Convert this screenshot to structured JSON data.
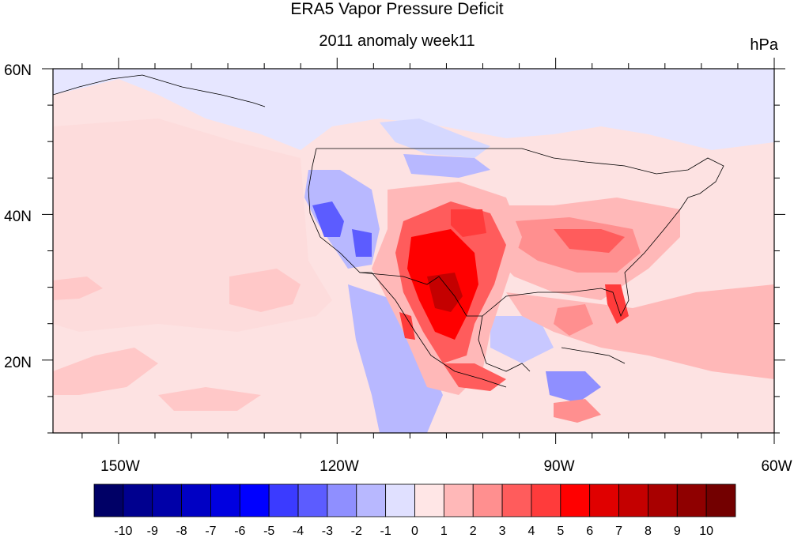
{
  "title": "ERA5 Vapor Pressure Deficit",
  "subtitle": "2011 anomaly week11",
  "units": "hPa",
  "map": {
    "lon_ticks": [
      {
        "lon": -150,
        "label": "150W"
      },
      {
        "lon": -120,
        "label": "120W"
      },
      {
        "lon": -90,
        "label": "90W"
      },
      {
        "lon": -60,
        "label": "60W"
      }
    ],
    "lat_ticks": [
      {
        "lat": 60,
        "label": "60N"
      },
      {
        "lat": 40,
        "label": "40N"
      },
      {
        "lat": 20,
        "label": "20N"
      }
    ],
    "lon_range": [
      -159,
      -60
    ],
    "lat_range": [
      10,
      60
    ],
    "background_color": "#fde2e2"
  },
  "colorbar": {
    "labels": [
      "-10",
      "-9",
      "-8",
      "-7",
      "-6",
      "-5",
      "-4",
      "-3",
      "-2",
      "-1",
      "0",
      "1",
      "2",
      "3",
      "4",
      "5",
      "6",
      "7",
      "8",
      "9",
      "10"
    ],
    "colors": [
      "#000066",
      "#00008f",
      "#0000a8",
      "#0000c4",
      "#0000e0",
      "#0000ff",
      "#3b3bff",
      "#5c5cff",
      "#8f8fff",
      "#b8b8ff",
      "#e0e0ff",
      "#ffe6e6",
      "#ffb8b8",
      "#ff8f8f",
      "#ff5c5c",
      "#ff3b3b",
      "#ff0000",
      "#e00000",
      "#c40000",
      "#a80000",
      "#8f0000",
      "#730000"
    ]
  },
  "regions": [
    {
      "name": "northern-pacific-blue-band",
      "color": "#e0e0ff"
    },
    {
      "name": "california-nevada-dry-anomaly-negative",
      "color": "#5c5cff"
    },
    {
      "name": "texas-mexico-positive-anomaly",
      "color": "#e00000"
    },
    {
      "name": "southeast-us-positive-anomaly",
      "color": "#ff8f8f"
    },
    {
      "name": "gulf-caribbean-positive-anomaly",
      "color": "#ffb8b8"
    },
    {
      "name": "eastern-pacific-negative-anomaly",
      "color": "#8f8fff"
    }
  ]
}
